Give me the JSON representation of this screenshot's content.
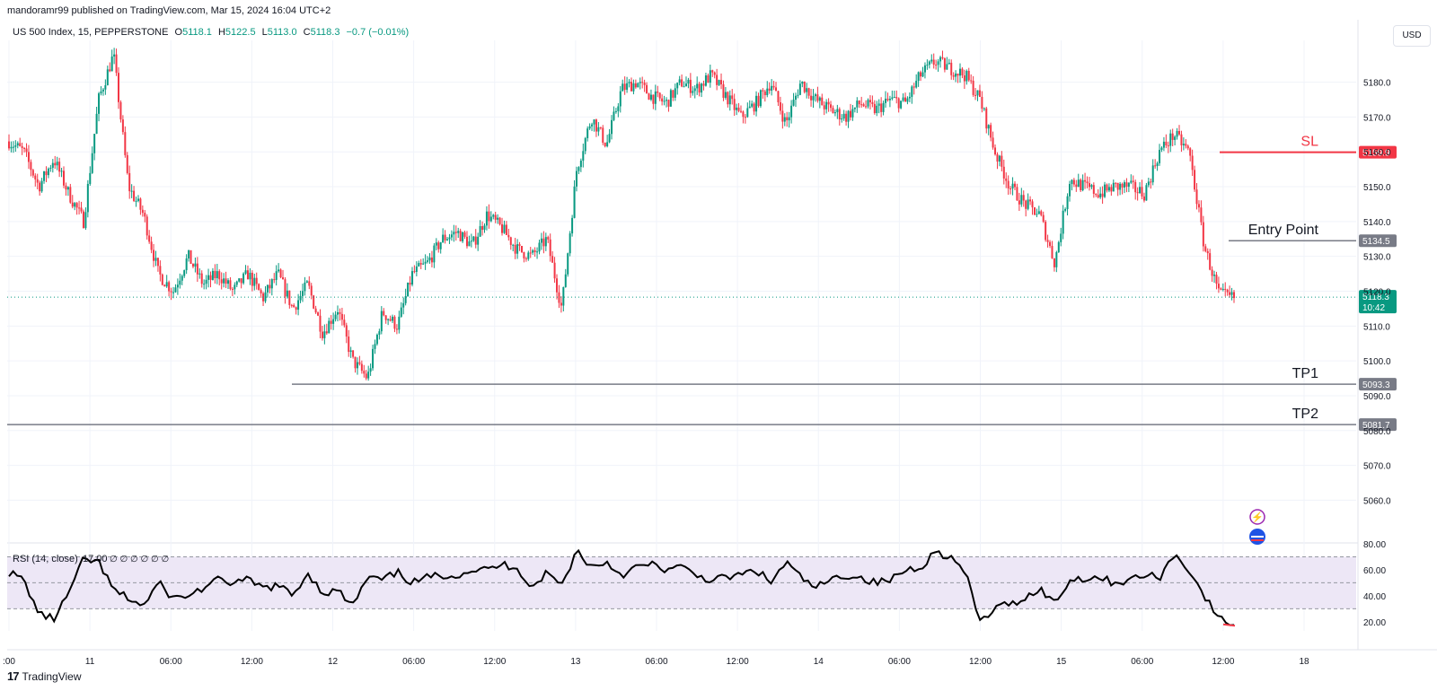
{
  "header": {
    "published_line": "mandoramr99 published on TradingView.com, Mar 15, 2024 16:04 UTC+2"
  },
  "legend": {
    "symbol": "US 500 Index, 15, PEPPERSTONE",
    "open_label": "O",
    "open": "5118.1",
    "high_label": "H",
    "high": "5122.5",
    "low_label": "L",
    "low": "5113.0",
    "close_label": "C",
    "close": "5118.3",
    "change": "−0.7 (−0.01%)"
  },
  "currency_button": "USD",
  "footer": {
    "brand": "TradingView"
  },
  "colors": {
    "up": "#089981",
    "down": "#f23645",
    "sl": "#f23645",
    "level": "#787b86",
    "rsi": "#000000",
    "rsi_band": "#ede7f6"
  },
  "chart_data": {
    "type": "candlestick",
    "price_axis": {
      "ylim": [
        5048,
        5192
      ],
      "ticks": [
        5180.0,
        5170.0,
        5160.0,
        5150.0,
        5140.0,
        5130.0,
        5120.0,
        5110.0,
        5100.0,
        5090.0,
        5080.0,
        5070.0,
        5060.0
      ],
      "tick_labels": [
        "5180.0",
        "5170.0",
        "5160.0",
        "5150.0",
        "5140.0",
        "5130.0",
        "5120.0",
        "5110.0",
        "5100.0",
        "5090.0",
        "5080.0",
        "5070.0",
        "5060.0"
      ]
    },
    "time_axis": {
      "labels": [
        ":00",
        "11",
        "06:00",
        "12:00",
        "12",
        "06:00",
        "12:00",
        "13",
        "06:00",
        "12:00",
        "14",
        "06:00",
        "12:00",
        "15",
        "06:00",
        "12:00",
        "18"
      ]
    },
    "levels": [
      {
        "label": "SL",
        "price": 5159.9,
        "tag": "5159.9",
        "color": "#f23645"
      },
      {
        "label": "Entry Point",
        "price": 5134.5,
        "tag": "5134.5",
        "color": "#787b86"
      },
      {
        "label": "TP1",
        "price": 5093.3,
        "tag": "5093.3",
        "color": "#787b86"
      },
      {
        "label": "TP2",
        "price": 5081.7,
        "tag": "5081.7",
        "color": "#787b86"
      }
    ],
    "last_price": {
      "price": 5118.3,
      "tag": "5118.3",
      "countdown": "10:42"
    },
    "price_path": [
      5163,
      5160,
      5150,
      5158,
      5148,
      5140,
      5175,
      5188,
      5150,
      5142,
      5125,
      5120,
      5130,
      5122,
      5125,
      5120,
      5125,
      5118,
      5125,
      5115,
      5122,
      5108,
      5115,
      5100,
      5095,
      5114,
      5110,
      5125,
      5128,
      5135,
      5137,
      5133,
      5142,
      5138,
      5132,
      5130,
      5135,
      5115,
      5155,
      5170,
      5162,
      5178,
      5180,
      5176,
      5174,
      5180,
      5178,
      5182,
      5176,
      5170,
      5174,
      5180,
      5168,
      5180,
      5175,
      5172,
      5170,
      5174,
      5172,
      5175,
      5174,
      5182,
      5186,
      5184,
      5182,
      5175,
      5160,
      5150,
      5145,
      5142,
      5128,
      5152,
      5150,
      5148,
      5150,
      5150,
      5148,
      5160,
      5165,
      5160,
      5133,
      5119,
      5118
    ],
    "rsi": {
      "label": "RSI (14, close)",
      "value": "17.00",
      "extra": "∅ ∅ ∅ ∅ ∅ ∅",
      "ylim": [
        13,
        80
      ],
      "ticks": [
        80,
        60,
        40,
        20
      ],
      "tick_labels": [
        "80.00",
        "60.00",
        "40.00",
        "20.00"
      ],
      "band": [
        30,
        70
      ],
      "values": [
        58,
        52,
        26,
        22,
        42,
        68,
        66,
        44,
        38,
        32,
        50,
        38,
        40,
        46,
        52,
        50,
        52,
        46,
        48,
        40,
        58,
        42,
        44,
        32,
        54,
        52,
        58,
        50,
        54,
        56,
        56,
        60,
        60,
        64,
        62,
        46,
        58,
        48,
        75,
        62,
        66,
        56,
        62,
        64,
        60,
        62,
        56,
        52,
        54,
        56,
        60,
        50,
        66,
        54,
        46,
        52,
        56,
        54,
        50,
        52,
        60,
        62,
        74,
        70,
        58,
        20,
        30,
        34,
        38,
        46,
        34,
        52,
        54,
        54,
        50,
        52,
        56,
        54,
        72,
        60,
        40,
        22,
        18
      ]
    }
  }
}
